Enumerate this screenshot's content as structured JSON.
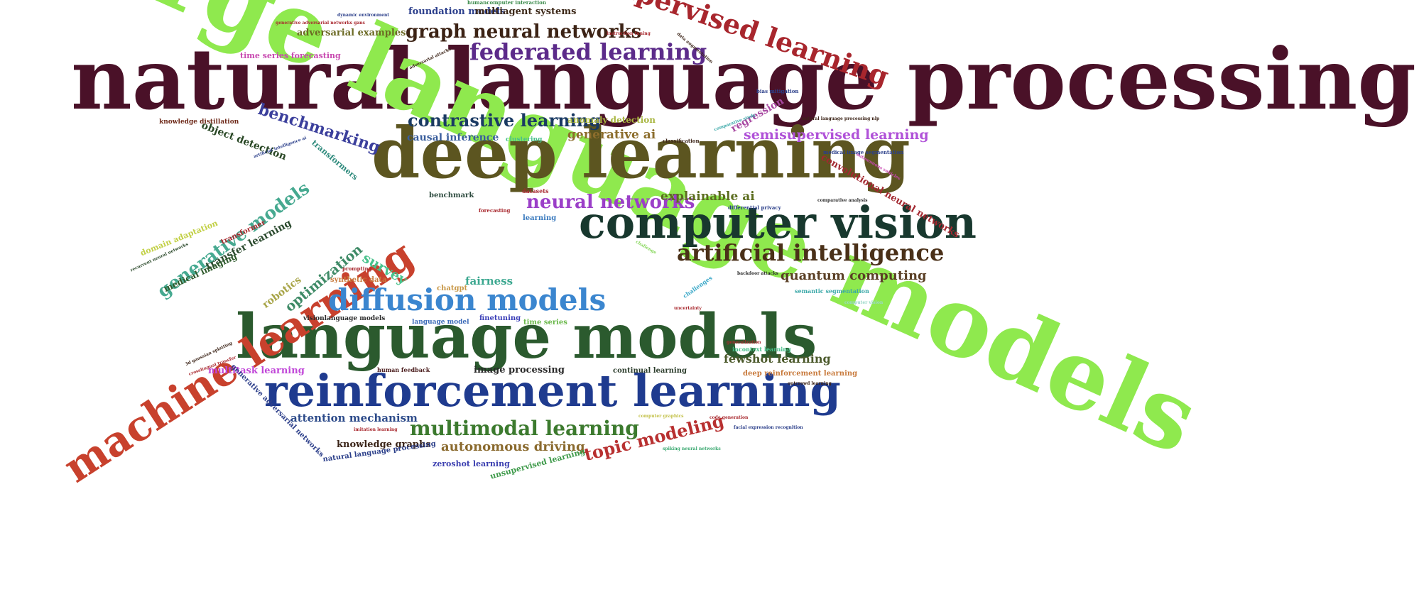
{
  "words": [
    {
      "text": "natural language processing",
      "color": "#4a1128"
    },
    {
      "text": "large language models",
      "color": "#8fe94e"
    },
    {
      "text": "deep learning",
      "color": "#5c5520"
    },
    {
      "text": "computer vision",
      "color": "#18382e"
    },
    {
      "text": "language models",
      "color": "#2b5a2e"
    },
    {
      "text": "reinforcement learning",
      "color": "#1f3b8f"
    },
    {
      "text": "machine learning",
      "color": "#c8412d"
    },
    {
      "text": "supervised learning",
      "color": "#a8262d"
    },
    {
      "text": "diffusion models",
      "color": "#3b86cf"
    },
    {
      "text": "artificial intelligence",
      "color": "#4a3018"
    },
    {
      "text": "federated learning",
      "color": "#5c2b8a"
    },
    {
      "text": "graph neural networks",
      "color": "#3c2315"
    },
    {
      "text": "multimodal learning",
      "color": "#3c7a2e"
    },
    {
      "text": "generative models",
      "color": "#46a990"
    },
    {
      "text": "neural networks",
      "color": "#9b3fc8"
    },
    {
      "text": "contrastive learning",
      "color": "#1a3a63"
    },
    {
      "text": "topic modeling",
      "color": "#b83030"
    },
    {
      "text": "benchmarking",
      "color": "#3b3f9c"
    },
    {
      "text": "semisupervised learning",
      "color": "#b052d8"
    },
    {
      "text": "quantum computing",
      "color": "#5a3f25"
    },
    {
      "text": "autonomous driving",
      "color": "#8a6a2e"
    },
    {
      "text": "explainable ai",
      "color": "#5c6d1f"
    },
    {
      "text": "generative ai",
      "color": "#8c6d2c"
    },
    {
      "text": "optimization",
      "color": "#3e8a66"
    },
    {
      "text": "survey",
      "color": "#48c28c"
    },
    {
      "text": "convolutional neural networks",
      "color": "#a32830"
    },
    {
      "text": "object detection",
      "color": "#2a4826"
    },
    {
      "text": "transfer learning",
      "color": "#2b4a2e"
    },
    {
      "text": "fewshot learning",
      "color": "#4c5a2c"
    },
    {
      "text": "attention mechanism",
      "color": "#2d4b8a"
    },
    {
      "text": "knowledge graphs",
      "color": "#3a2418"
    },
    {
      "text": "medical imaging",
      "color": "#2e5a2c"
    },
    {
      "text": "foundation models",
      "color": "#2c3f8c"
    },
    {
      "text": "multiagent systems",
      "color": "#3c2818"
    },
    {
      "text": "adversarial examples",
      "color": "#6c6a24"
    },
    {
      "text": "causal inference",
      "color": "#3a5e9c"
    },
    {
      "text": "regression",
      "color": "#a84aa2"
    },
    {
      "text": "fairness",
      "color": "#3ca890"
    },
    {
      "text": "robotics",
      "color": "#a8a548"
    },
    {
      "text": "multitask learning",
      "color": "#c046d8"
    },
    {
      "text": "image processing",
      "color": "#2b2b2b"
    },
    {
      "text": "transformers",
      "color": "#2e8a7c"
    },
    {
      "text": "anomaly detection",
      "color": "#a8b640"
    },
    {
      "text": "generative adversarial networks",
      "color": "#2d3f8a"
    },
    {
      "text": "time series forecasting",
      "color": "#c84ab0"
    },
    {
      "text": "domain adaptation",
      "color": "#c2d046"
    },
    {
      "text": "continual learning",
      "color": "#2c3d2c"
    },
    {
      "text": "deep reinforcement learning",
      "color": "#c87a3c"
    },
    {
      "text": "natural language processing",
      "color": "#2b3f8a"
    },
    {
      "text": "zeroshot learning",
      "color": "#3b3fb0"
    },
    {
      "text": "unsupervised learning",
      "color": "#3e9a4a"
    },
    {
      "text": "transformer",
      "color": "#a8282e"
    },
    {
      "text": "benchmark",
      "color": "#2c4a3e"
    },
    {
      "text": "learning",
      "color": "#3a7abe"
    },
    {
      "text": "knowledge distillation",
      "color": "#6e2a1a"
    },
    {
      "text": "clustering",
      "color": "#48c08c"
    },
    {
      "text": "chatgpt",
      "color": "#c89848"
    },
    {
      "text": "synthetic data",
      "color": "#c87a3c"
    },
    {
      "text": "finetuning",
      "color": "#3b3fb8"
    },
    {
      "text": "time series",
      "color": "#6ab84a"
    },
    {
      "text": "language model",
      "color": "#3b6ab8"
    },
    {
      "text": "visionlanguage models",
      "color": "#2b2b2b"
    },
    {
      "text": "human feedback",
      "color": "#4a1c1c"
    },
    {
      "text": "incontext learning",
      "color": "#48c08c"
    },
    {
      "text": "challenges",
      "color": "#3aa8c8"
    },
    {
      "text": "datasets",
      "color": "#a82830"
    },
    {
      "text": "forecasting",
      "color": "#a8282e"
    },
    {
      "text": "prompting",
      "color": "#a8282e"
    },
    {
      "text": "classification",
      "color": "#3c2418"
    },
    {
      "text": "differential privacy",
      "color": "#2b3f8a"
    },
    {
      "text": "comparative analysis",
      "color": "#2c2c2c"
    },
    {
      "text": "semantic segmentation",
      "color": "#3aa8a8"
    },
    {
      "text": "medical image segmentation",
      "color": "#2b3f8a"
    },
    {
      "text": "bias mitigation",
      "color": "#2b3f8a"
    },
    {
      "text": "natural language processing nlp",
      "color": "#3c2418"
    },
    {
      "text": "generative adversarial networks gans",
      "color": "#a8282e"
    },
    {
      "text": "humancomputer interaction",
      "color": "#3a8a4a"
    },
    {
      "text": "dynamic environment",
      "color": "#2b3f8a"
    },
    {
      "text": "instruction tuning",
      "color": "#a8282e"
    },
    {
      "text": "data augmentation",
      "color": "#3c2418"
    },
    {
      "text": "adversarial attacks",
      "color": "#3c2418"
    },
    {
      "text": "recurrent neural networks",
      "color": "#2c4a2c"
    },
    {
      "text": "artificial intelligence ai",
      "color": "#2b3f8a"
    },
    {
      "text": "3d gaussian splatting",
      "color": "#3c2418"
    },
    {
      "text": "crosslingual transfer",
      "color": "#a8282e"
    },
    {
      "text": "imitation learning",
      "color": "#a8282e"
    },
    {
      "text": "uncertainty",
      "color": "#a8282e"
    },
    {
      "text": "backdoor attacks",
      "color": "#2c2c2c"
    },
    {
      "text": "generalization",
      "color": "#a8282e"
    },
    {
      "text": "computer graphics",
      "color": "#c2c046"
    },
    {
      "text": "code generation",
      "color": "#a8282e"
    },
    {
      "text": "facial expression recognition",
      "color": "#2b3f8a"
    },
    {
      "text": "spiking neural networks",
      "color": "#3aa870"
    },
    {
      "text": "outcrowd learning",
      "color": "#3c2418"
    },
    {
      "text": "comparative study",
      "color": "#3aa8a8"
    },
    {
      "text": "autonomous vehicles",
      "color": "#c846b0"
    },
    {
      "text": "computer vision",
      "color": "#9ad8c8"
    },
    {
      "text": "challenge",
      "color": "#8ad860"
    }
  ]
}
